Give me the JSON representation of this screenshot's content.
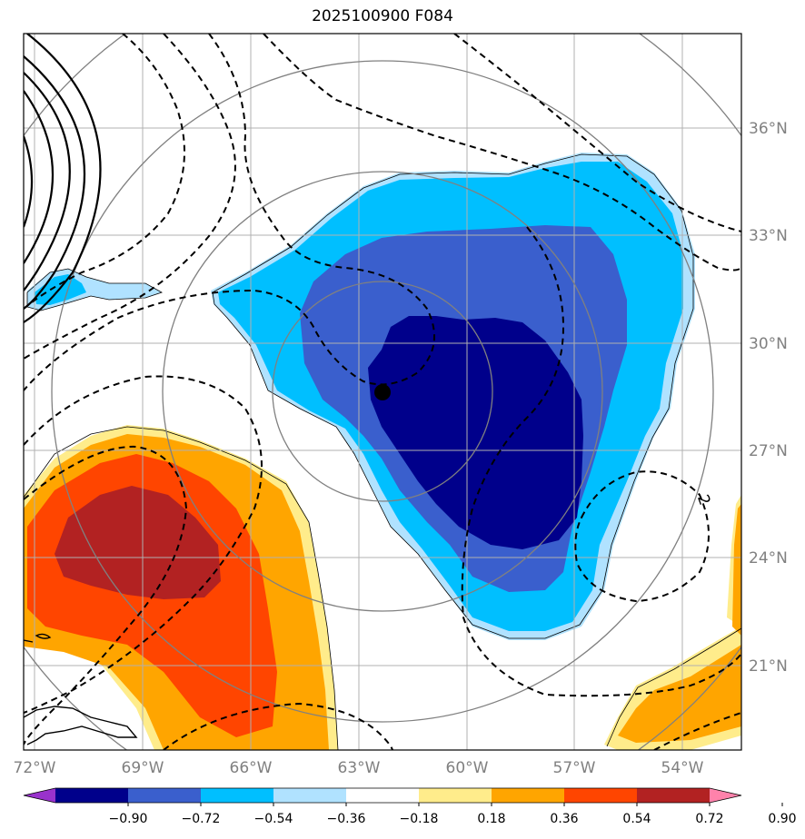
{
  "title": "2025100900 F084",
  "map": {
    "lon_labels": [
      "72°W",
      "69°W",
      "66°W",
      "63°W",
      "60°W",
      "57°W",
      "54°W"
    ],
    "lat_labels": [
      "36°N",
      "33°N",
      "30°N",
      "27°N",
      "24°N",
      "21°N"
    ],
    "contour_label": "2",
    "center_marker": {
      "lon": -62.3,
      "lat": 28.7
    }
  },
  "colorbar": {
    "ticks": [
      "−0.90",
      "−0.72",
      "−0.54",
      "−0.36",
      "−0.18",
      "0.18",
      "0.36",
      "0.54",
      "0.72",
      "0.90"
    ],
    "colors": [
      "#9932cc",
      "#00008b",
      "#3a5fcd",
      "#00bfff",
      "#b0e2ff",
      "#ffffff",
      "#ffec8b",
      "#ffa500",
      "#ff4500",
      "#b22222",
      "#ff82ab"
    ]
  }
}
